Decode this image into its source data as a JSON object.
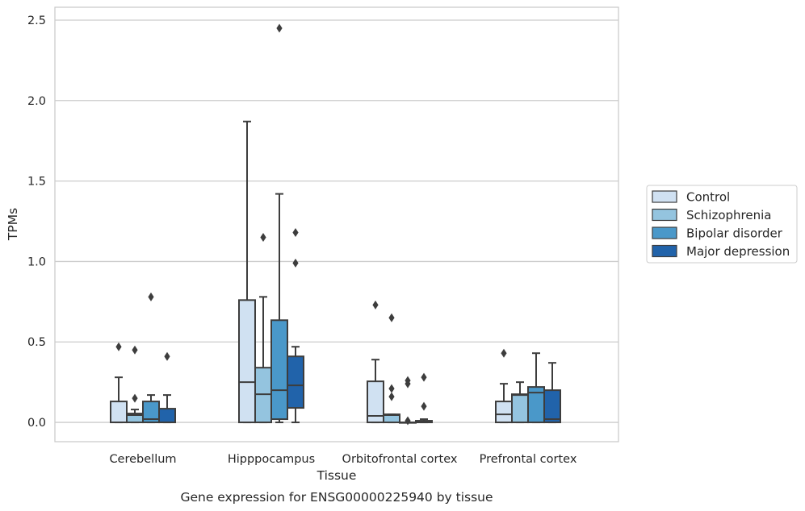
{
  "caption": "Gene expression for ENSG00000225940 by tissue",
  "chart_data": {
    "type": "box",
    "xlabel": "Tissue",
    "ylabel": "TPMs",
    "ylim": [
      -0.12,
      2.58
    ],
    "yticks": [
      0.0,
      0.5,
      1.0,
      1.5,
      2.0,
      2.5
    ],
    "ytick_labels": [
      "0.0",
      "0.5",
      "1.0",
      "1.5",
      "2.0",
      "2.5"
    ],
    "grid": "horizontal",
    "legend_position": "right",
    "categories": [
      "Cerebellum",
      "Hipppocampus",
      "Orbitofrontal cortex",
      "Prefrontal cortex"
    ],
    "series": [
      {
        "name": "Control",
        "color": "#d0e1f2",
        "boxes": [
          {
            "whislo": 0.0,
            "q1": 0.0,
            "med": 0.0,
            "q3": 0.13,
            "whishi": 0.28,
            "fliers": [
              0.47
            ]
          },
          {
            "whislo": 0.0,
            "q1": 0.0,
            "med": 0.25,
            "q3": 0.76,
            "whishi": 1.87,
            "fliers": []
          },
          {
            "whislo": 0.0,
            "q1": 0.0,
            "med": 0.04,
            "q3": 0.255,
            "whishi": 0.39,
            "fliers": [
              0.73
            ]
          },
          {
            "whislo": 0.0,
            "q1": 0.0,
            "med": 0.05,
            "q3": 0.13,
            "whishi": 0.24,
            "fliers": [
              0.43
            ]
          }
        ]
      },
      {
        "name": "Schizophrenia",
        "color": "#94c4df",
        "boxes": [
          {
            "whislo": 0.0,
            "q1": 0.0,
            "med": 0.045,
            "q3": 0.055,
            "whishi": 0.08,
            "fliers": [
              0.15,
              0.45
            ]
          },
          {
            "whislo": 0.0,
            "q1": 0.0,
            "med": 0.175,
            "q3": 0.34,
            "whishi": 0.78,
            "fliers": [
              1.15
            ]
          },
          {
            "whislo": 0.0,
            "q1": 0.0,
            "med": 0.045,
            "q3": 0.05,
            "whishi": 0.05,
            "fliers": [
              0.16,
              0.21,
              0.65
            ]
          },
          {
            "whislo": 0.0,
            "q1": 0.0,
            "med": 0.17,
            "q3": 0.175,
            "whishi": 0.25,
            "fliers": []
          }
        ]
      },
      {
        "name": "Bipolar disorder",
        "color": "#4a98c9",
        "boxes": [
          {
            "whislo": 0.0,
            "q1": 0.0,
            "med": 0.02,
            "q3": 0.13,
            "whishi": 0.17,
            "fliers": [
              0.78
            ]
          },
          {
            "whislo": 0.0,
            "q1": 0.02,
            "med": 0.2,
            "q3": 0.635,
            "whishi": 1.42,
            "fliers": [
              2.45
            ]
          },
          {
            "whislo": 0.0,
            "q1": 0.0,
            "med": 0.0,
            "q3": 0.0,
            "whishi": 0.0,
            "fliers": [
              0.01,
              0.24,
              0.26
            ]
          },
          {
            "whislo": 0.0,
            "q1": 0.0,
            "med": 0.185,
            "q3": 0.22,
            "whishi": 0.43,
            "fliers": []
          }
        ]
      },
      {
        "name": "Major depression",
        "color": "#2163aa",
        "boxes": [
          {
            "whislo": 0.0,
            "q1": 0.0,
            "med": 0.0,
            "q3": 0.085,
            "whishi": 0.17,
            "fliers": [
              0.41
            ]
          },
          {
            "whislo": 0.0,
            "q1": 0.09,
            "med": 0.23,
            "q3": 0.41,
            "whishi": 0.47,
            "fliers": [
              0.99,
              1.18
            ]
          },
          {
            "whislo": 0.0,
            "q1": 0.0,
            "med": 0.005,
            "q3": 0.01,
            "whishi": 0.02,
            "fliers": [
              0.1,
              0.28
            ]
          },
          {
            "whislo": 0.0,
            "q1": 0.0,
            "med": 0.02,
            "q3": 0.2,
            "whishi": 0.37,
            "fliers": []
          }
        ]
      }
    ]
  }
}
